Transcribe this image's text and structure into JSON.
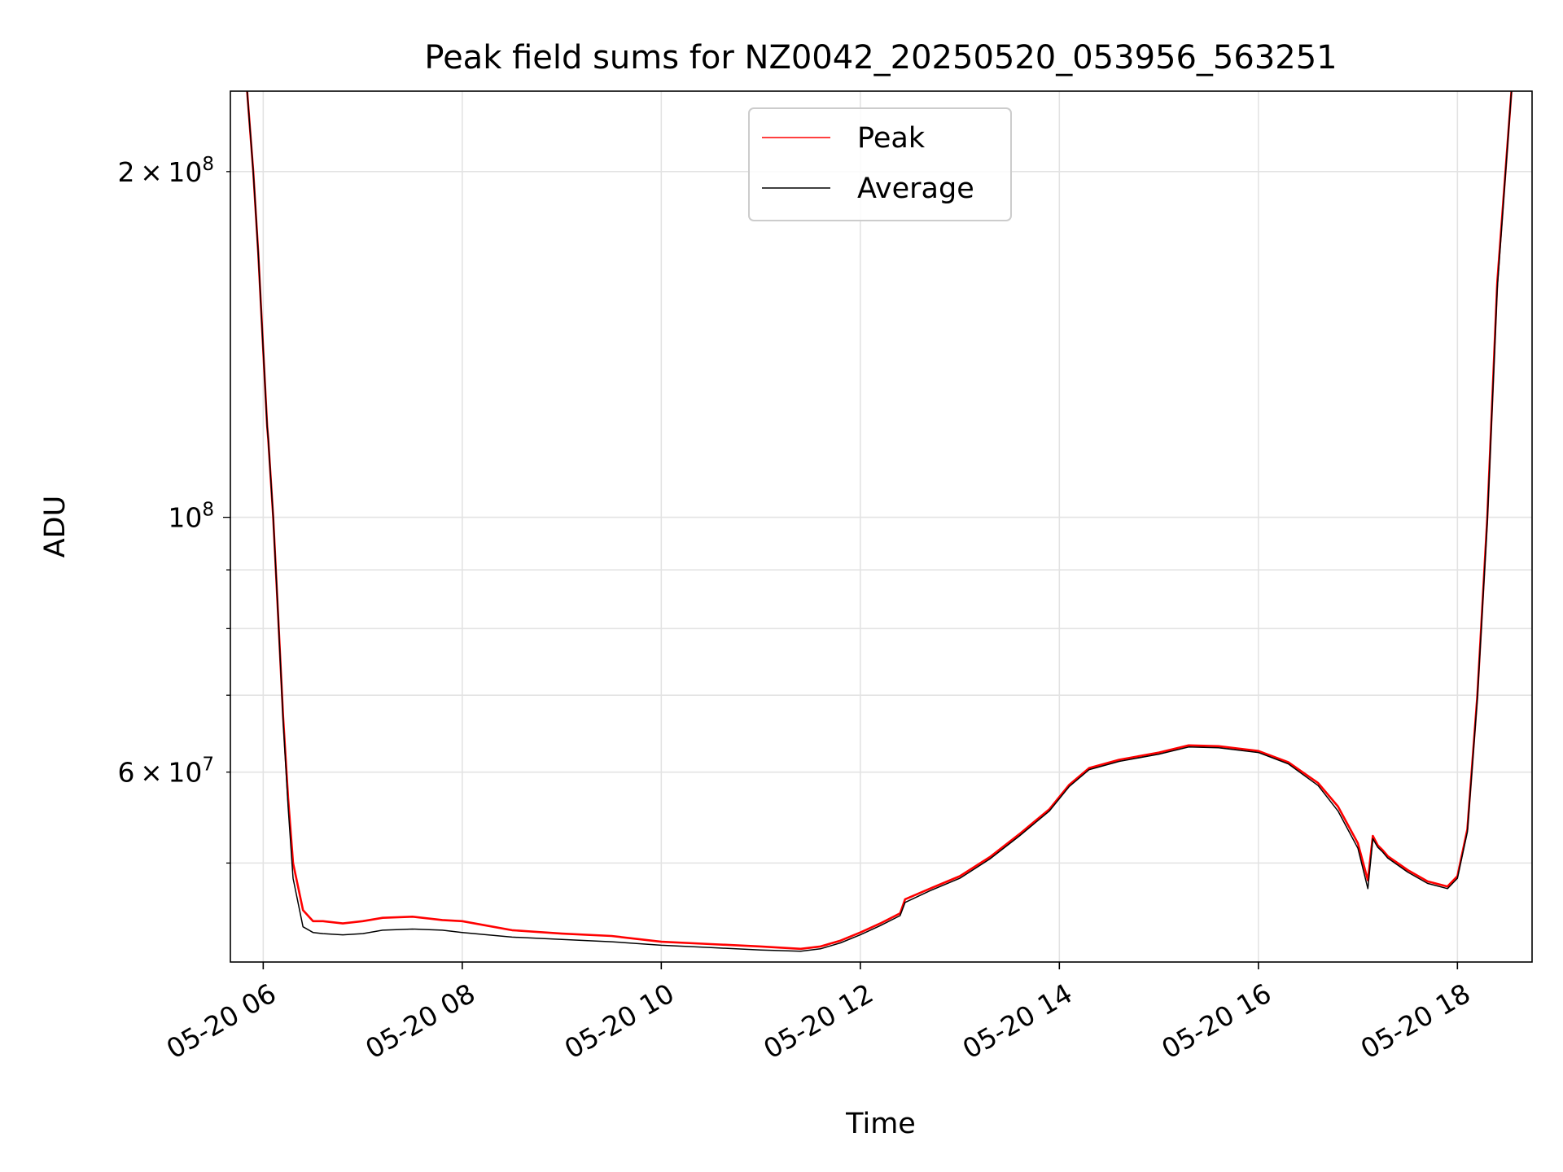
{
  "chart_data": {
    "type": "line",
    "title": "Peak field sums for NZ0042_20250520_053956_563251",
    "xlabel": "Time",
    "ylabel": "ADU",
    "x_unit": "hour of 2025-05-20",
    "xlim": [
      5.67,
      18.75
    ],
    "ylim": [
      41000000,
      235000000
    ],
    "yscale": "log",
    "grid": true,
    "legend_position": "upper center",
    "x_ticks": [
      {
        "value": 6,
        "label": "05-20 06"
      },
      {
        "value": 8,
        "label": "05-20 08"
      },
      {
        "value": 10,
        "label": "05-20 10"
      },
      {
        "value": 12,
        "label": "05-20 12"
      },
      {
        "value": 14,
        "label": "05-20 14"
      },
      {
        "value": 16,
        "label": "05-20 16"
      },
      {
        "value": 18,
        "label": "05-20 18"
      }
    ],
    "y_major_ticks": [
      {
        "value": 100000000,
        "base": "10",
        "exp": "8"
      }
    ],
    "y_minor_ticks": [
      {
        "value": 50000000
      },
      {
        "value": 60000000,
        "mant": "6",
        "base": "10",
        "exp": "7"
      },
      {
        "value": 70000000
      },
      {
        "value": 80000000
      },
      {
        "value": 90000000
      },
      {
        "value": 200000000,
        "mant": "2",
        "base": "10",
        "exp": "8"
      }
    ],
    "series": [
      {
        "name": "Peak",
        "color": "#ff0000",
        "x": [
          5.83,
          5.9,
          5.95,
          6.0,
          6.04,
          6.05,
          6.1,
          6.15,
          6.2,
          6.25,
          6.3,
          6.4,
          6.5,
          6.6,
          6.8,
          7.0,
          7.2,
          7.5,
          7.8,
          8.0,
          8.5,
          9.0,
          9.5,
          10.0,
          10.5,
          11.0,
          11.4,
          11.6,
          11.8,
          12.0,
          12.2,
          12.4,
          12.45,
          12.7,
          13.0,
          13.3,
          13.6,
          13.9,
          14.1,
          14.3,
          14.6,
          15.0,
          15.3,
          15.6,
          16.0,
          16.3,
          16.6,
          16.8,
          17.0,
          17.1,
          17.15,
          17.2,
          17.25,
          17.3,
          17.5,
          17.7,
          17.9,
          18.0,
          18.1,
          18.2,
          18.3,
          18.4,
          18.55
        ],
        "y": [
          240000000,
          200000000,
          170000000,
          140000000,
          120000000,
          117000000,
          100000000,
          82000000,
          67000000,
          57000000,
          50000000,
          45500000,
          44500000,
          44500000,
          44300000,
          44500000,
          44800000,
          44900000,
          44600000,
          44500000,
          43700000,
          43400000,
          43200000,
          42700000,
          42500000,
          42300000,
          42100000,
          42300000,
          42800000,
          43500000,
          44300000,
          45200000,
          46500000,
          47500000,
          48700000,
          50600000,
          53000000,
          55700000,
          58500000,
          60500000,
          61500000,
          62400000,
          63300000,
          63200000,
          62600000,
          61200000,
          58700000,
          56000000,
          52000000,
          48300000,
          52800000,
          51800000,
          51300000,
          50700000,
          49300000,
          48200000,
          47700000,
          48700000,
          53500000,
          70000000,
          100000000,
          160000000,
          240000000
        ]
      },
      {
        "name": "Average",
        "color": "#000000",
        "x": [
          5.83,
          5.9,
          5.95,
          6.0,
          6.04,
          6.05,
          6.1,
          6.15,
          6.2,
          6.25,
          6.3,
          6.4,
          6.5,
          6.6,
          6.8,
          7.0,
          7.2,
          7.5,
          7.8,
          8.0,
          8.5,
          9.0,
          9.5,
          10.0,
          10.5,
          11.0,
          11.4,
          11.6,
          11.8,
          12.0,
          12.2,
          12.4,
          12.45,
          12.7,
          13.0,
          13.3,
          13.6,
          13.9,
          14.1,
          14.3,
          14.6,
          15.0,
          15.3,
          15.6,
          16.0,
          16.3,
          16.6,
          16.8,
          17.0,
          17.1,
          17.15,
          17.2,
          17.25,
          17.3,
          17.5,
          17.7,
          17.9,
          18.0,
          18.1,
          18.2,
          18.3,
          18.4,
          18.55
        ],
        "y": [
          240000000,
          200000000,
          170000000,
          140000000,
          120000000,
          117000000,
          100000000,
          82000000,
          66500000,
          56000000,
          48500000,
          44000000,
          43500000,
          43400000,
          43300000,
          43400000,
          43700000,
          43800000,
          43700000,
          43500000,
          43100000,
          42900000,
          42700000,
          42400000,
          42200000,
          42000000,
          41900000,
          42100000,
          42600000,
          43300000,
          44100000,
          45000000,
          46200000,
          47300000,
          48500000,
          50400000,
          52800000,
          55500000,
          58300000,
          60300000,
          61300000,
          62200000,
          63100000,
          63000000,
          62400000,
          61000000,
          58400000,
          55500000,
          51500000,
          47500000,
          52500000,
          51600000,
          51100000,
          50500000,
          49100000,
          48000000,
          47500000,
          48500000,
          53200000,
          69500000,
          99000000,
          158000000,
          240000000
        ]
      }
    ]
  }
}
